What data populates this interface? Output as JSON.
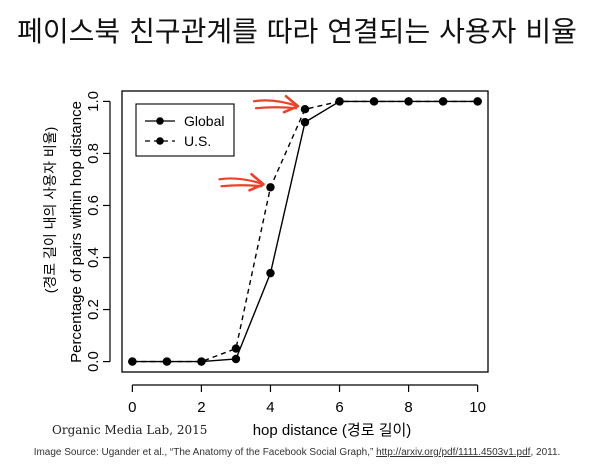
{
  "slide": {
    "title": "페이스북 친구관계를 따라  연결되는 사용자 비율",
    "credit": "Organic Media Lab, 2015",
    "source_prefix": "Image Source: Ugander et al., “The Anatomy of the Facebook Social Graph,” ",
    "source_link": "http://arxiv.org/pdf/1111.4503v1.pdf",
    "source_suffix": ", 2011."
  },
  "chart_data": {
    "type": "line",
    "xlabel": "hop distance (경로 길이)",
    "ylabel": "Percentage of pairs within hop distance",
    "ylabel_secondary": "(경로 길이 내의 사용자 비율)",
    "xlim": [
      -0.3,
      10.3
    ],
    "ylim": [
      -0.04,
      1.04
    ],
    "x_ticks": [
      "0",
      "2",
      "4",
      "6",
      "8",
      "10"
    ],
    "y_ticks": [
      "0.0",
      "0.2",
      "0.4",
      "0.6",
      "0.8",
      "1.0"
    ],
    "grid": false,
    "legend": "top-left",
    "series": [
      {
        "name": "Global",
        "line_style": "solid",
        "x": [
          0,
          1,
          2,
          3,
          4,
          5,
          6,
          7,
          8,
          9,
          10
        ],
        "y": [
          0.0,
          0.0,
          0.0,
          0.01,
          0.34,
          0.92,
          1.0,
          1.0,
          1.0,
          1.0,
          1.0
        ]
      },
      {
        "name": "U.S.",
        "line_style": "dashed",
        "x": [
          0,
          1,
          2,
          3,
          4,
          5,
          6,
          7,
          8,
          9,
          10
        ],
        "y": [
          0.0,
          0.0,
          0.0,
          0.05,
          0.67,
          0.97,
          1.0,
          1.0,
          1.0,
          1.0,
          1.0
        ]
      }
    ],
    "annotations": [
      {
        "type": "arrow",
        "series": "U.S.",
        "x": 4,
        "y": 0.67,
        "color": "#e8442a"
      },
      {
        "type": "arrow",
        "series": "U.S.",
        "x": 5,
        "y": 0.97,
        "color": "#e8442a"
      }
    ]
  }
}
